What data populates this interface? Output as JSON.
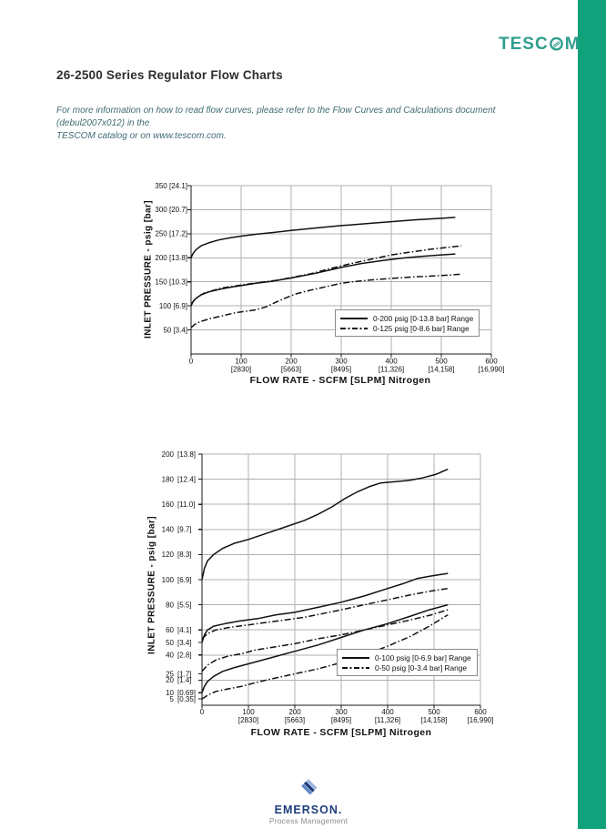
{
  "colors": {
    "accent_green": "#12a27b",
    "tescom_teal": "#2f9e8d",
    "emerson_blue": "#1e3e7b",
    "emerson_gray": "#8f8f8f"
  },
  "header": {
    "logo_prefix": "TESC",
    "logo_o": "O",
    "logo_suffix": "M",
    "title": "26-2500 Series Regulator Flow Charts",
    "note": "For more information on how to read flow curves, please refer to the Flow Curves and Calculations document (debul2007x012) in the\nTESCOM catalog or on www.tescom.com."
  },
  "footer": {
    "brand": "EMERSON.",
    "tagline": "Process Management"
  },
  "chart_data": [
    {
      "type": "line",
      "title": "",
      "xlabel": "FLOW RATE - SCFM [SLPM] Nitrogen",
      "ylabel": "INLET PRESSURE - psig [bar]",
      "xlim": [
        0,
        600
      ],
      "ylim": [
        0,
        350
      ],
      "grid": {
        "vertical": true,
        "horizontal": true
      },
      "grid_x": [
        100,
        200,
        300,
        400,
        500,
        600
      ],
      "grid_y": [
        50,
        100,
        150,
        200,
        250,
        300,
        350
      ],
      "x_ticks": [
        {
          "v": 0,
          "l": "0",
          "sub": ""
        },
        {
          "v": 100,
          "l": "100",
          "sub": "[2830]"
        },
        {
          "v": 200,
          "l": "200",
          "sub": "[5663]"
        },
        {
          "v": 300,
          "l": "300",
          "sub": "[8495]"
        },
        {
          "v": 400,
          "l": "400",
          "sub": "[11,326]"
        },
        {
          "v": 500,
          "l": "500",
          "sub": "[14,158]"
        },
        {
          "v": 600,
          "l": "600",
          "sub": "[16,990]"
        }
      ],
      "y_ticks": [
        {
          "v": 350,
          "l": "350",
          "sub": "[24.1]"
        },
        {
          "v": 300,
          "l": "300",
          "sub": "[20.7]"
        },
        {
          "v": 250,
          "l": "250",
          "sub": "[17.2]"
        },
        {
          "v": 200,
          "l": "200",
          "sub": "[13.8]"
        },
        {
          "v": 150,
          "l": "150",
          "sub": "[10.3]"
        },
        {
          "v": 100,
          "l": "100",
          "sub": "[6.9]"
        },
        {
          "v": 50,
          "l": "50",
          "sub": "[3.4]"
        }
      ],
      "legend": [
        {
          "style": "solid",
          "label": "0-200 psig [0-13.8 bar] Range"
        },
        {
          "style": "dashdot",
          "label": "0-125 psig [0-8.6 bar] Range"
        }
      ],
      "series": [
        {
          "name": "0-200 psig range (upper curve)",
          "style": "solid",
          "points": [
            [
              0,
              200
            ],
            [
              4,
              209
            ],
            [
              10,
              217
            ],
            [
              20,
              225
            ],
            [
              35,
              231
            ],
            [
              55,
              237
            ],
            [
              80,
              242
            ],
            [
              100,
              245
            ],
            [
              130,
              249
            ],
            [
              160,
              252
            ],
            [
              200,
              257
            ],
            [
              250,
              262
            ],
            [
              300,
              267
            ],
            [
              350,
              271
            ],
            [
              400,
              275
            ],
            [
              450,
              279
            ],
            [
              500,
              282
            ],
            [
              528,
              284
            ]
          ]
        },
        {
          "name": "0-200 psig range (lower curve)",
          "style": "solid",
          "points": [
            [
              0,
              100
            ],
            [
              4,
              109
            ],
            [
              10,
              116
            ],
            [
              20,
              123
            ],
            [
              35,
              129
            ],
            [
              55,
              134
            ],
            [
              80,
              139
            ],
            [
              100,
              142
            ],
            [
              130,
              147
            ],
            [
              160,
              151
            ],
            [
              200,
              158
            ],
            [
              250,
              168
            ],
            [
              300,
              180
            ],
            [
              340,
              188
            ],
            [
              380,
              194
            ],
            [
              420,
              199
            ],
            [
              460,
              203
            ],
            [
              500,
              206
            ],
            [
              528,
              208
            ]
          ]
        },
        {
          "name": "0-125 psig range (upper curve)",
          "style": "dashdot",
          "points": [
            [
              0,
              103
            ],
            [
              6,
              112
            ],
            [
              14,
              119
            ],
            [
              25,
              126
            ],
            [
              40,
              131
            ],
            [
              60,
              137
            ],
            [
              85,
              141
            ],
            [
              110,
              145
            ],
            [
              140,
              149
            ],
            [
              170,
              153
            ],
            [
              200,
              159
            ],
            [
              240,
              167
            ],
            [
              280,
              178
            ],
            [
              320,
              188
            ],
            [
              360,
              197
            ],
            [
              400,
              206
            ],
            [
              440,
              212
            ],
            [
              480,
              218
            ],
            [
              515,
              222
            ],
            [
              540,
              225
            ]
          ]
        },
        {
          "name": "0-125 psig range (lower curve)",
          "style": "dashdot",
          "points": [
            [
              0,
              55
            ],
            [
              8,
              62
            ],
            [
              20,
              68
            ],
            [
              40,
              74
            ],
            [
              65,
              80
            ],
            [
              90,
              86
            ],
            [
              110,
              89
            ],
            [
              130,
              92
            ],
            [
              150,
              98
            ],
            [
              170,
              108
            ],
            [
              190,
              117
            ],
            [
              210,
              125
            ],
            [
              240,
              133
            ],
            [
              270,
              140
            ],
            [
              300,
              147
            ],
            [
              330,
              151
            ],
            [
              360,
              154
            ],
            [
              400,
              157
            ],
            [
              440,
              160
            ],
            [
              480,
              162
            ],
            [
              515,
              164
            ],
            [
              540,
              166
            ]
          ]
        }
      ]
    },
    {
      "type": "line",
      "title": "",
      "xlabel": "FLOW RATE - SCFM [SLPM] Nitrogen",
      "ylabel": "INLET PRESSURE - psig [bar]",
      "xlim": [
        0,
        600
      ],
      "ylim": [
        0,
        200
      ],
      "grid": {
        "vertical": true,
        "horizontal": true
      },
      "grid_x": [
        100,
        200,
        300,
        400,
        500,
        600
      ],
      "grid_y": [
        20,
        40,
        60,
        80,
        100,
        120,
        140,
        160,
        180,
        200
      ],
      "x_ticks": [
        {
          "v": 0,
          "l": "0",
          "sub": ""
        },
        {
          "v": 100,
          "l": "100",
          "sub": "[2830]"
        },
        {
          "v": 200,
          "l": "200",
          "sub": "[5663]"
        },
        {
          "v": 300,
          "l": "300",
          "sub": "[8495]"
        },
        {
          "v": 400,
          "l": "400",
          "sub": "[11,326]"
        },
        {
          "v": 500,
          "l": "500",
          "sub": "[14,158]"
        },
        {
          "v": 600,
          "l": "600",
          "sub": "[16,990]"
        }
      ],
      "y_ticks": [
        {
          "v": 200,
          "l": "200",
          "sub": "[13.8]"
        },
        {
          "v": 180,
          "l": "180",
          "sub": "[12.4]"
        },
        {
          "v": 160,
          "l": "160",
          "sub": "[11.0]"
        },
        {
          "v": 140,
          "l": "140",
          "sub": "[9.7]"
        },
        {
          "v": 120,
          "l": "120",
          "sub": "[8.3]"
        },
        {
          "v": 100,
          "l": "100",
          "sub": "[6.9]"
        },
        {
          "v": 80,
          "l": "80",
          "sub": "[5.5]"
        },
        {
          "v": 60,
          "l": "60",
          "sub": "[4.1]"
        },
        {
          "v": 50,
          "l": "50",
          "sub": "[3.4]"
        },
        {
          "v": 40,
          "l": "40",
          "sub": "[2.8]"
        },
        {
          "v": 25,
          "l": "25",
          "sub": "[1.7]"
        },
        {
          "v": 20,
          "l": "20",
          "sub": "[1.4]"
        },
        {
          "v": 10,
          "l": "10",
          "sub": "[0.69]"
        },
        {
          "v": 5,
          "l": "5",
          "sub": "[0.35]"
        }
      ],
      "legend": [
        {
          "style": "solid",
          "label": "0-100 psig [0-6.9 bar] Range"
        },
        {
          "style": "dashdot",
          "label": "0-50 psig [0-3.4 bar] Range"
        }
      ],
      "series": [
        {
          "name": "0-100 psig range (upper curve)",
          "style": "solid",
          "points": [
            [
              0,
              100
            ],
            [
              5,
              109
            ],
            [
              12,
              115
            ],
            [
              25,
              120
            ],
            [
              45,
              125
            ],
            [
              70,
              129
            ],
            [
              100,
              132
            ],
            [
              140,
              137
            ],
            [
              180,
              142
            ],
            [
              220,
              147
            ],
            [
              250,
              152
            ],
            [
              280,
              158
            ],
            [
              310,
              165
            ],
            [
              335,
              170
            ],
            [
              360,
              174
            ],
            [
              385,
              177
            ],
            [
              415,
              178
            ],
            [
              445,
              179
            ],
            [
              475,
              181
            ],
            [
              505,
              184
            ],
            [
              530,
              188
            ]
          ]
        },
        {
          "name": "0-100 psig range (middle curve)",
          "style": "solid",
          "points": [
            [
              0,
              50
            ],
            [
              5,
              56
            ],
            [
              12,
              60
            ],
            [
              25,
              63
            ],
            [
              50,
              65
            ],
            [
              80,
              67
            ],
            [
              120,
              69
            ],
            [
              160,
              72
            ],
            [
              200,
              74
            ],
            [
              250,
              78
            ],
            [
              300,
              82
            ],
            [
              350,
              87
            ],
            [
              400,
              93
            ],
            [
              435,
              97
            ],
            [
              465,
              101
            ],
            [
              495,
              103
            ],
            [
              530,
              105
            ]
          ]
        },
        {
          "name": "0-100 psig range (lower curve)",
          "style": "solid",
          "points": [
            [
              0,
              10
            ],
            [
              5,
              15
            ],
            [
              12,
              19
            ],
            [
              25,
              23
            ],
            [
              45,
              27
            ],
            [
              70,
              30
            ],
            [
              100,
              33
            ],
            [
              150,
              38
            ],
            [
              200,
              43
            ],
            [
              250,
              48
            ],
            [
              300,
              54
            ],
            [
              350,
              60
            ],
            [
              400,
              65
            ],
            [
              450,
              71
            ],
            [
              490,
              76
            ],
            [
              530,
              80
            ]
          ]
        },
        {
          "name": "0-50 psig range (upper curve)",
          "style": "dashdot",
          "points": [
            [
              0,
              53
            ],
            [
              12,
              57
            ],
            [
              30,
              60
            ],
            [
              60,
              62
            ],
            [
              100,
              64
            ],
            [
              140,
              66
            ],
            [
              180,
              68
            ],
            [
              220,
              70
            ],
            [
              260,
              73
            ],
            [
              300,
              76
            ],
            [
              350,
              80
            ],
            [
              400,
              84
            ],
            [
              450,
              88
            ],
            [
              495,
              91
            ],
            [
              530,
              93
            ]
          ]
        },
        {
          "name": "0-50 psig range (middle curve)",
          "style": "dashdot",
          "points": [
            [
              0,
              27
            ],
            [
              12,
              32
            ],
            [
              30,
              36
            ],
            [
              55,
              39
            ],
            [
              85,
              41
            ],
            [
              115,
              44
            ],
            [
              150,
              46
            ],
            [
              200,
              49
            ],
            [
              250,
              53
            ],
            [
              300,
              56
            ],
            [
              350,
              60
            ],
            [
              400,
              64
            ],
            [
              450,
              68
            ],
            [
              495,
              72
            ],
            [
              530,
              76
            ]
          ]
        },
        {
          "name": "0-50 psig range (lower curve)",
          "style": "dashdot",
          "points": [
            [
              0,
              5
            ],
            [
              12,
              8
            ],
            [
              30,
              11
            ],
            [
              55,
              13
            ],
            [
              85,
              15
            ],
            [
              115,
              18
            ],
            [
              150,
              21
            ],
            [
              200,
              25
            ],
            [
              250,
              29
            ],
            [
              300,
              34
            ],
            [
              350,
              40
            ],
            [
              400,
              47
            ],
            [
              450,
              55
            ],
            [
              490,
              63
            ],
            [
              530,
              72
            ]
          ]
        }
      ]
    }
  ]
}
